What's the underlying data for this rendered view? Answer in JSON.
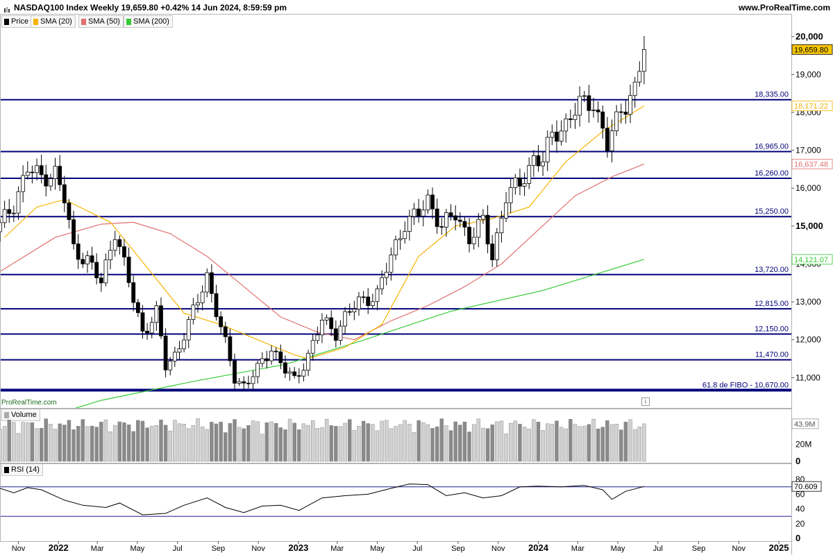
{
  "header": {
    "title": "NASDAQ100 Index Weekly 19,659.80 +0.42% 14 Jun 2024, 8:59:59 pm",
    "site": "www.ProRealTime.com"
  },
  "legend": {
    "price": "Price",
    "sma20": "SMA (20)",
    "sma50": "SMA (50)",
    "sma200": "SMA (200)",
    "volume": "Volume",
    "rsi": "RSI (14)"
  },
  "brand": "ProRealTime.com",
  "colors": {
    "grid_border": "#b4b4b4",
    "candle_up_fill": "#ffffff",
    "candle_down_fill": "#000000",
    "sma20": "#f5b400",
    "sma50": "#e07070",
    "sma200": "#33cc33",
    "level_line": "#00007a",
    "rsi_line": "#000000",
    "rsi_bands": "#1f1f8f",
    "current_price_bg": "#f7c600"
  },
  "chart_data": {
    "type": "candlestick",
    "instrument": "NASDAQ100 Index",
    "timeframe": "Weekly",
    "date": "14 Jun 2024",
    "x_range": [
      "2021-10-04",
      "2025-01-20"
    ],
    "x_tick_labels": [
      {
        "label": "Nov",
        "date": "2021-11-01",
        "bold": false
      },
      {
        "label": "2022",
        "date": "2022-01-01",
        "bold": true
      },
      {
        "label": "Mar",
        "date": "2022-03-01",
        "bold": false
      },
      {
        "label": "May",
        "date": "2022-05-01",
        "bold": false
      },
      {
        "label": "Jul",
        "date": "2022-07-01",
        "bold": false
      },
      {
        "label": "Sep",
        "date": "2022-09-01",
        "bold": false
      },
      {
        "label": "Nov",
        "date": "2022-11-01",
        "bold": false
      },
      {
        "label": "2023",
        "date": "2023-01-01",
        "bold": true
      },
      {
        "label": "Mar",
        "date": "2023-03-01",
        "bold": false
      },
      {
        "label": "May",
        "date": "2023-05-01",
        "bold": false
      },
      {
        "label": "Jul",
        "date": "2023-07-01",
        "bold": false
      },
      {
        "label": "Sep",
        "date": "2023-09-01",
        "bold": false
      },
      {
        "label": "Nov",
        "date": "2023-11-01",
        "bold": false
      },
      {
        "label": "2024",
        "date": "2024-01-01",
        "bold": true
      },
      {
        "label": "Mar",
        "date": "2024-03-01",
        "bold": false
      },
      {
        "label": "May",
        "date": "2024-05-01",
        "bold": false
      },
      {
        "label": "Jul",
        "date": "2024-07-01",
        "bold": false
      },
      {
        "label": "Sep",
        "date": "2024-09-01",
        "bold": false
      },
      {
        "label": "Nov",
        "date": "2024-11-01",
        "bold": false
      },
      {
        "label": "2025",
        "date": "2025-01-01",
        "bold": true
      }
    ],
    "price_axis": {
      "ylim": [
        10200,
        20600
      ],
      "ticks": [
        {
          "label": "20,000",
          "value": 20000,
          "bold": true
        },
        {
          "label": "19,000",
          "value": 19000,
          "bold": false
        },
        {
          "label": "18,000",
          "value": 18000,
          "bold": false
        },
        {
          "label": "17,000",
          "value": 17000,
          "bold": false
        },
        {
          "label": "16,000",
          "value": 16000,
          "bold": false
        },
        {
          "label": "15,000",
          "value": 15000,
          "bold": true
        },
        {
          "label": "14,000",
          "value": 14000,
          "bold": false
        },
        {
          "label": "13,000",
          "value": 13000,
          "bold": false
        },
        {
          "label": "12,000",
          "value": 12000,
          "bold": false
        },
        {
          "label": "11,000",
          "value": 11000,
          "bold": false
        }
      ]
    },
    "levels": [
      {
        "label": "18,335.00",
        "value": 18335,
        "thick": false
      },
      {
        "label": "16,965.00",
        "value": 16965,
        "thick": false
      },
      {
        "label": "16,260.00",
        "value": 16260,
        "thick": false
      },
      {
        "label": "15,250.00",
        "value": 15250,
        "thick": false
      },
      {
        "label": "13,720.00",
        "value": 13720,
        "thick": false
      },
      {
        "label": "12,815.00",
        "value": 12815,
        "thick": false
      },
      {
        "label": "12,150.00",
        "value": 12150,
        "thick": false
      },
      {
        "label": "11,470.00",
        "value": 11470,
        "thick": false
      },
      {
        "label": "61.8 de FIBO -  10,670.00",
        "value": 10670,
        "thick": true
      }
    ],
    "value_labels": [
      {
        "series": "Price",
        "label": "19,659.80",
        "value": 19659.8
      },
      {
        "series": "SMA (20)",
        "label": "18,171.22",
        "value": 18171.22
      },
      {
        "series": "SMA (50)",
        "label": "16,637.48",
        "value": 16637.48
      },
      {
        "series": "SMA (200)",
        "label": "14,121.07",
        "value": 14121.07
      }
    ],
    "close_path": [
      {
        "date": "2021-10-04",
        "close": 15000
      },
      {
        "date": "2021-10-25",
        "close": 15600
      },
      {
        "date": "2021-11-15",
        "close": 16500
      },
      {
        "date": "2021-12-06",
        "close": 16300
      },
      {
        "date": "2021-12-27",
        "close": 16400
      },
      {
        "date": "2022-01-10",
        "close": 15700
      },
      {
        "date": "2022-01-24",
        "close": 14400
      },
      {
        "date": "2022-02-14",
        "close": 14100
      },
      {
        "date": "2022-03-07",
        "close": 13500
      },
      {
        "date": "2022-03-28",
        "close": 14900
      },
      {
        "date": "2022-04-18",
        "close": 13500
      },
      {
        "date": "2022-05-09",
        "close": 12200
      },
      {
        "date": "2022-05-30",
        "close": 12700
      },
      {
        "date": "2022-06-13",
        "close": 11300
      },
      {
        "date": "2022-06-27",
        "close": 11600
      },
      {
        "date": "2022-07-18",
        "close": 12400
      },
      {
        "date": "2022-08-15",
        "close": 13700
      },
      {
        "date": "2022-09-05",
        "close": 12300
      },
      {
        "date": "2022-09-26",
        "close": 11000
      },
      {
        "date": "2022-10-10",
        "close": 10800
      },
      {
        "date": "2022-10-31",
        "close": 11200
      },
      {
        "date": "2022-11-21",
        "close": 11800
      },
      {
        "date": "2022-12-12",
        "close": 11200
      },
      {
        "date": "2022-12-26",
        "close": 10900
      },
      {
        "date": "2023-01-16",
        "close": 11600
      },
      {
        "date": "2023-02-06",
        "close": 12500
      },
      {
        "date": "2023-02-27",
        "close": 12200
      },
      {
        "date": "2023-03-13",
        "close": 12600
      },
      {
        "date": "2023-04-03",
        "close": 13000
      },
      {
        "date": "2023-05-01",
        "close": 13200
      },
      {
        "date": "2023-05-22",
        "close": 14200
      },
      {
        "date": "2023-06-12",
        "close": 15100
      },
      {
        "date": "2023-07-03",
        "close": 15300
      },
      {
        "date": "2023-07-17",
        "close": 15700
      },
      {
        "date": "2023-08-07",
        "close": 15000
      },
      {
        "date": "2023-08-28",
        "close": 15300
      },
      {
        "date": "2023-09-18",
        "close": 14700
      },
      {
        "date": "2023-10-09",
        "close": 15100
      },
      {
        "date": "2023-10-23",
        "close": 14200
      },
      {
        "date": "2023-11-13",
        "close": 15800
      },
      {
        "date": "2023-12-04",
        "close": 16100
      },
      {
        "date": "2023-12-25",
        "close": 16800
      },
      {
        "date": "2024-01-08",
        "close": 16700
      },
      {
        "date": "2024-01-22",
        "close": 17400
      },
      {
        "date": "2024-02-12",
        "close": 17700
      },
      {
        "date": "2024-03-04",
        "close": 18200
      },
      {
        "date": "2024-03-25",
        "close": 18300
      },
      {
        "date": "2024-04-15",
        "close": 17100
      },
      {
        "date": "2024-05-06",
        "close": 18100
      },
      {
        "date": "2024-05-27",
        "close": 18600
      },
      {
        "date": "2024-06-10",
        "close": 19659.8
      }
    ],
    "sma20_path": [
      {
        "date": "2021-10-11",
        "value": 14700
      },
      {
        "date": "2021-11-29",
        "value": 15500
      },
      {
        "date": "2022-01-10",
        "value": 15700
      },
      {
        "date": "2022-03-21",
        "value": 15100
      },
      {
        "date": "2022-05-16",
        "value": 13900
      },
      {
        "date": "2022-07-11",
        "value": 12700
      },
      {
        "date": "2022-09-05",
        "value": 12400
      },
      {
        "date": "2022-10-31",
        "value": 12000
      },
      {
        "date": "2022-12-26",
        "value": 11600
      },
      {
        "date": "2023-01-16",
        "value": 11500
      },
      {
        "date": "2023-03-13",
        "value": 11800
      },
      {
        "date": "2023-05-08",
        "value": 12400
      },
      {
        "date": "2023-07-03",
        "value": 14200
      },
      {
        "date": "2023-08-28",
        "value": 15000
      },
      {
        "date": "2023-10-23",
        "value": 15200
      },
      {
        "date": "2023-12-18",
        "value": 15500
      },
      {
        "date": "2024-02-12",
        "value": 16700
      },
      {
        "date": "2024-04-08",
        "value": 17500
      },
      {
        "date": "2024-06-10",
        "value": 18171.22
      }
    ],
    "sma50_path": [
      {
        "date": "2021-10-04",
        "value": 13800
      },
      {
        "date": "2021-12-27",
        "value": 14700
      },
      {
        "date": "2022-03-07",
        "value": 15050
      },
      {
        "date": "2022-04-25",
        "value": 15100
      },
      {
        "date": "2022-06-20",
        "value": 14800
      },
      {
        "date": "2022-08-15",
        "value": 14200
      },
      {
        "date": "2022-10-10",
        "value": 13400
      },
      {
        "date": "2022-12-05",
        "value": 12600
      },
      {
        "date": "2023-01-30",
        "value": 12200
      },
      {
        "date": "2023-03-27",
        "value": 12000
      },
      {
        "date": "2023-05-22",
        "value": 12500
      },
      {
        "date": "2023-07-17",
        "value": 12900
      },
      {
        "date": "2023-09-11",
        "value": 13400
      },
      {
        "date": "2023-11-06",
        "value": 14000
      },
      {
        "date": "2024-01-01",
        "value": 14900
      },
      {
        "date": "2024-02-26",
        "value": 15800
      },
      {
        "date": "2024-04-22",
        "value": 16300
      },
      {
        "date": "2024-06-10",
        "value": 16637.48
      }
    ],
    "sma200_path": [
      {
        "date": "2021-10-25",
        "value": 9700
      },
      {
        "date": "2022-03-07",
        "value": 10400
      },
      {
        "date": "2022-07-25",
        "value": 10900
      },
      {
        "date": "2022-12-12",
        "value": 11350
      },
      {
        "date": "2023-04-03",
        "value": 11950
      },
      {
        "date": "2023-08-21",
        "value": 12750
      },
      {
        "date": "2024-01-08",
        "value": 13300
      },
      {
        "date": "2024-06-10",
        "value": 14121.07
      }
    ],
    "volume_axis": {
      "ticks": [
        {
          "label": "20M",
          "value": 20000000,
          "bold": false
        },
        {
          "label": "0",
          "value": 0,
          "bold": true
        }
      ],
      "last_label": "43.9M",
      "last_value": 43900000,
      "ymax": 60000000
    },
    "rsi_axis": {
      "ticks": [
        {
          "label": "80",
          "value": 80,
          "bold": false
        },
        {
          "label": "60",
          "value": 60,
          "bold": false
        },
        {
          "label": "40",
          "value": 40,
          "bold": false
        },
        {
          "label": "20",
          "value": 20,
          "bold": false
        },
        {
          "label": "0",
          "value": 0,
          "bold": true
        }
      ],
      "overbought": 70,
      "oversold": 30,
      "last_label": "70.609",
      "last_value": 70.609
    },
    "rsi_path": [
      {
        "date": "2021-10-04",
        "value": 68
      },
      {
        "date": "2021-10-25",
        "value": 62
      },
      {
        "date": "2021-11-15",
        "value": 69
      },
      {
        "date": "2021-12-06",
        "value": 66
      },
      {
        "date": "2022-01-10",
        "value": 52
      },
      {
        "date": "2022-02-07",
        "value": 45
      },
      {
        "date": "2022-03-14",
        "value": 42
      },
      {
        "date": "2022-04-04",
        "value": 48
      },
      {
        "date": "2022-05-09",
        "value": 32
      },
      {
        "date": "2022-06-13",
        "value": 34
      },
      {
        "date": "2022-07-11",
        "value": 45
      },
      {
        "date": "2022-08-15",
        "value": 55
      },
      {
        "date": "2022-09-12",
        "value": 42
      },
      {
        "date": "2022-10-10",
        "value": 35
      },
      {
        "date": "2022-11-07",
        "value": 44
      },
      {
        "date": "2022-12-05",
        "value": 45
      },
      {
        "date": "2023-01-02",
        "value": 38
      },
      {
        "date": "2023-02-06",
        "value": 55
      },
      {
        "date": "2023-03-13",
        "value": 58
      },
      {
        "date": "2023-04-17",
        "value": 60
      },
      {
        "date": "2023-05-22",
        "value": 68
      },
      {
        "date": "2023-06-19",
        "value": 74
      },
      {
        "date": "2023-07-17",
        "value": 73
      },
      {
        "date": "2023-08-14",
        "value": 58
      },
      {
        "date": "2023-09-11",
        "value": 62
      },
      {
        "date": "2023-10-09",
        "value": 55
      },
      {
        "date": "2023-11-06",
        "value": 58
      },
      {
        "date": "2023-12-04",
        "value": 70
      },
      {
        "date": "2024-01-01",
        "value": 71
      },
      {
        "date": "2024-02-05",
        "value": 70
      },
      {
        "date": "2024-03-11",
        "value": 72
      },
      {
        "date": "2024-04-08",
        "value": 66
      },
      {
        "date": "2024-04-22",
        "value": 53
      },
      {
        "date": "2024-05-13",
        "value": 64
      },
      {
        "date": "2024-06-10",
        "value": 70.609
      }
    ]
  }
}
